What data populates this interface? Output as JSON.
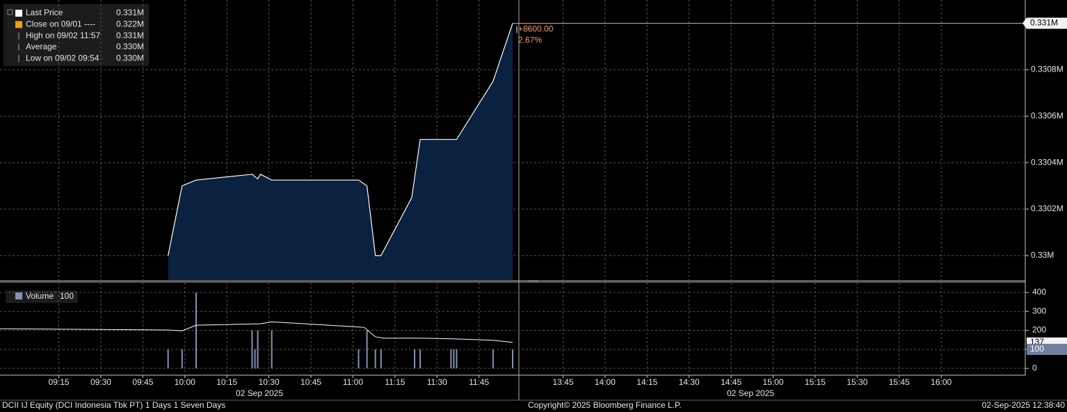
{
  "chart_data": [
    {
      "type": "area",
      "series": [
        {
          "name": "Last Price",
          "color": "#ffffff",
          "fill": "#0b2140",
          "x": [
            "09:54",
            "09:59",
            "10:04",
            "10:24",
            "10:26",
            "10:27",
            "10:31",
            "11:02",
            "11:05",
            "11:08",
            "11:10",
            "11:21",
            "11:24",
            "11:37",
            "11:50",
            "11:57"
          ],
          "values": [
            330000,
            330300,
            330325,
            330350,
            330330,
            330350,
            330325,
            330325,
            330300,
            330000,
            330000,
            330250,
            330500,
            330500,
            330750,
            331000
          ]
        }
      ],
      "legend": [
        {
          "label": "Last Price",
          "value": "0.331M",
          "color": "#ffffff"
        },
        {
          "label": "Close on 09/01 ----",
          "value": "0.322M",
          "color": "#f39c12"
        },
        {
          "label": "High on 09/02 11:57",
          "value": "0.331M"
        },
        {
          "label": "Average",
          "value": "0.330M"
        },
        {
          "label": "Low on 09/02 09:54",
          "value": "0.330M"
        }
      ],
      "annotations": [
        "+8600.00",
        "2.67%"
      ],
      "last_price_tag": "0.331M",
      "line_color": "#f0a060",
      "ylim": [
        329895,
        331100
      ],
      "yticks": [
        {
          "value": 330000,
          "label": "0.33M"
        },
        {
          "value": 330200,
          "label": "0.3302M"
        },
        {
          "value": 330400,
          "label": "0.3304M"
        },
        {
          "value": 330600,
          "label": "0.3306M"
        },
        {
          "value": 330800,
          "label": "0.3308M"
        }
      ],
      "grid": true
    },
    {
      "type": "bar",
      "series": [
        {
          "name": "Volume",
          "color": "#8592b5",
          "x": [
            "09:54",
            "09:59",
            "10:04",
            "10:24",
            "10:25",
            "10:26",
            "10:31",
            "11:02",
            "11:05",
            "11:08",
            "11:10",
            "11:22",
            "11:24",
            "11:35",
            "11:36",
            "11:37",
            "11:50",
            "11:57"
          ],
          "values": [
            100,
            100,
            400,
            200,
            100,
            200,
            200,
            100,
            200,
            100,
            100,
            100,
            100,
            100,
            100,
            100,
            100,
            100
          ]
        },
        {
          "type": "line",
          "color": "#ffffff",
          "x": [
            "08:54",
            "09:54",
            "09:59",
            "10:04",
            "10:27",
            "10:31",
            "11:04",
            "11:08",
            "11:11",
            "11:25",
            "11:37",
            "11:50",
            "11:57"
          ],
          "values": [
            209,
            202,
            198,
            227,
            235,
            245,
            216,
            166,
            159,
            159,
            155,
            148,
            137
          ]
        }
      ],
      "legend_value": "100",
      "tags": [
        "100",
        "137"
      ],
      "ylim": [
        -36,
        451
      ],
      "yticks": [
        0,
        100,
        200,
        300,
        400
      ],
      "xlim": [
        "08:54",
        "16:30"
      ],
      "session_break": [
        "12:00",
        "13:30"
      ],
      "xticks": [
        "09:15",
        "09:30",
        "09:45",
        "10:00",
        "10:15",
        "10:30",
        "10:45",
        "11:00",
        "11:15",
        "11:30",
        "11:45",
        "13:45",
        "14:00",
        "14:15",
        "14:30",
        "14:45",
        "15:00",
        "15:15",
        "15:30",
        "15:45",
        "16:00"
      ],
      "date_labels": [
        "02 Sep 2025",
        "02 Sep 2025"
      ],
      "grid": true
    }
  ],
  "footer": {
    "left": "DCII IJ Equity (DCI Indonesia Tbk PT) 1 Days 1 Seven Days",
    "center": "Copyright© 2025 Bloomberg Finance L.P.",
    "right": "02-Sep-2025 12:38:40"
  }
}
